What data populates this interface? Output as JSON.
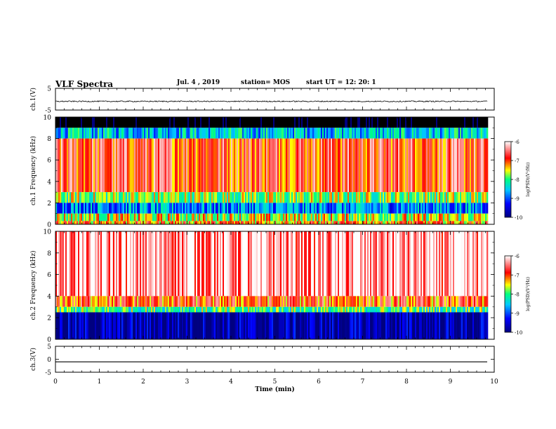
{
  "header": {
    "title": "VLF Spectra",
    "date": "Jul. 4 , 2019",
    "station": "station= MOS",
    "start": "start UT = 12: 20: 1"
  },
  "colors": {
    "colorbar": [
      "#000080",
      "#0000ff",
      "#00c8ff",
      "#00ff80",
      "#ffff00",
      "#ff0000",
      "#ffffff"
    ]
  },
  "chart_data": [
    {
      "type": "line",
      "panel": "ch1-waveform",
      "ylabel": "ch.1(V)",
      "ylim": [
        -5,
        5
      ],
      "yticks": [
        "5",
        "-5"
      ],
      "xlim": [
        0,
        10
      ],
      "baseline": -1.0
    },
    {
      "type": "heatmap",
      "panel": "ch1-spectrogram",
      "ylabel": "ch.1 Frequency (kHz)",
      "ylim": [
        0,
        10
      ],
      "yticks": [
        "0",
        "2",
        "4",
        "6",
        "8",
        "10"
      ],
      "xlim": [
        0,
        10
      ],
      "data_end_min": 9.85,
      "colorbar": {
        "label": "log(PSD)(V²/Hz)",
        "range": [
          -10,
          -6
        ],
        "ticks": [
          "-6",
          "-7",
          "-8",
          "-9",
          "-10"
        ]
      },
      "bands": [
        {
          "freq_khz": [
            9.0,
            10.0
          ],
          "log_psd": -11
        },
        {
          "freq_khz": [
            8.0,
            9.0
          ],
          "log_psd": -8.5
        },
        {
          "freq_khz": [
            3.0,
            8.0
          ],
          "log_psd": -6.8
        },
        {
          "freq_khz": [
            2.0,
            3.0
          ],
          "log_psd": -7.8
        },
        {
          "freq_khz": [
            1.0,
            2.0
          ],
          "log_psd": -8.8
        },
        {
          "freq_khz": [
            0.3,
            1.0
          ],
          "log_psd": -7.6
        },
        {
          "freq_khz": [
            0.0,
            0.3
          ],
          "log_psd": -7.2
        }
      ]
    },
    {
      "type": "heatmap",
      "panel": "ch2-spectrogram",
      "ylabel": "ch.2 Frequency (kHz)",
      "ylim": [
        0,
        10
      ],
      "yticks": [
        "0",
        "2",
        "4",
        "6",
        "8",
        "10"
      ],
      "xlim": [
        0,
        10
      ],
      "data_end_min": 9.85,
      "colorbar": {
        "label": "log(PSD)(V²/Hz)",
        "range": [
          -10,
          -6
        ],
        "ticks": [
          "-6",
          "-7",
          "-8",
          "-9",
          "-10"
        ]
      },
      "bands": [
        {
          "freq_khz": [
            4.0,
            10.0
          ],
          "log_psd": -6.3
        },
        {
          "freq_khz": [
            3.0,
            4.0
          ],
          "log_psd": -7.0
        },
        {
          "freq_khz": [
            2.5,
            3.0
          ],
          "log_psd": -8.0
        },
        {
          "freq_khz": [
            0.0,
            2.5
          ],
          "log_psd": -9.8
        }
      ]
    },
    {
      "type": "line",
      "panel": "ch3-waveform",
      "ylabel": "ch.3(V)",
      "ylim": [
        -5,
        5
      ],
      "yticks": [
        "5",
        "0",
        "-5"
      ],
      "xlim": [
        0,
        10
      ],
      "baseline": -1.0
    }
  ],
  "xaxis": {
    "label": "Time (min)",
    "ticks": [
      "0",
      "1",
      "2",
      "3",
      "4",
      "5",
      "6",
      "7",
      "8",
      "9",
      "10"
    ]
  }
}
